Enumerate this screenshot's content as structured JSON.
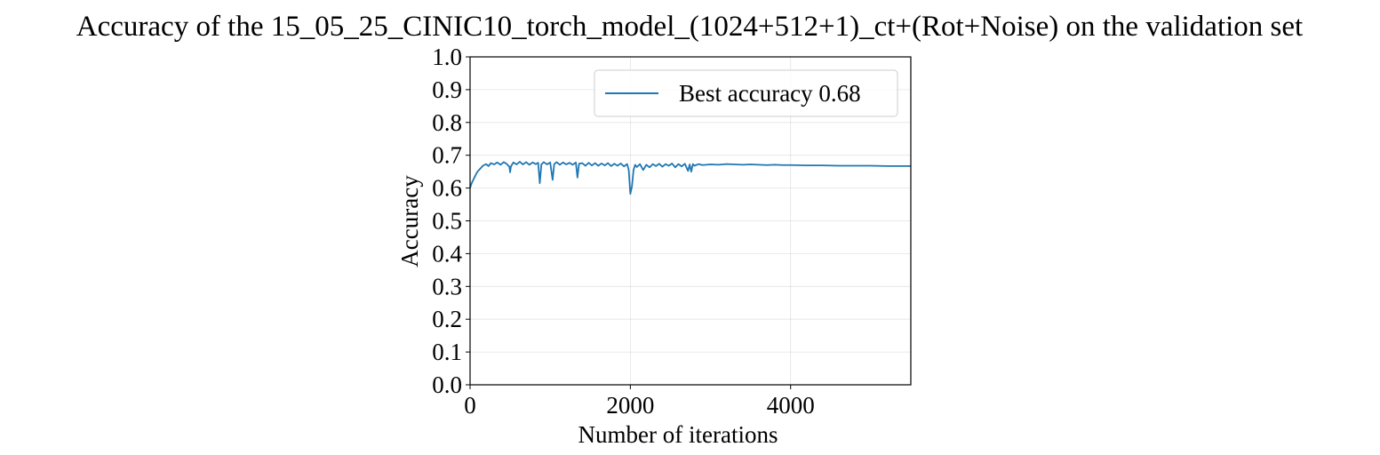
{
  "chart_data": {
    "type": "line",
    "title": "Accuracy of the 15_05_25_CINIC10_torch_model_(1024+512+1)_ct+(Rot+Noise) on the validation set",
    "xlabel": "Number of iterations",
    "ylabel": "Accuracy",
    "xlim": [
      0,
      5500
    ],
    "ylim": [
      0.0,
      1.0
    ],
    "xticks": [
      0,
      2000,
      4000
    ],
    "xtick_labels": [
      "0",
      "2000",
      "4000"
    ],
    "yticks": [
      0.0,
      0.1,
      0.2,
      0.3,
      0.4,
      0.5,
      0.6,
      0.7,
      0.8,
      0.9,
      1.0
    ],
    "ytick_labels": [
      "0.0",
      "0.1",
      "0.2",
      "0.3",
      "0.4",
      "0.5",
      "0.6",
      "0.7",
      "0.8",
      "0.9",
      "1.0"
    ],
    "grid": true,
    "legend_position": "top-right",
    "series": [
      {
        "name": "Best accuracy 0.68",
        "color": "#1f77b4",
        "x": [
          0,
          20,
          40,
          60,
          80,
          100,
          130,
          160,
          200,
          230,
          260,
          300,
          340,
          380,
          420,
          460,
          490,
          500,
          510,
          540,
          580,
          620,
          660,
          700,
          740,
          780,
          820,
          850,
          870,
          890,
          920,
          960,
          1000,
          1030,
          1050,
          1080,
          1120,
          1160,
          1200,
          1240,
          1280,
          1320,
          1340,
          1360,
          1400,
          1440,
          1480,
          1520,
          1560,
          1600,
          1640,
          1680,
          1720,
          1760,
          1800,
          1840,
          1880,
          1920,
          1960,
          1980,
          2000,
          2020,
          2040,
          2060,
          2080,
          2120,
          2160,
          2200,
          2240,
          2280,
          2320,
          2360,
          2400,
          2440,
          2480,
          2520,
          2560,
          2600,
          2640,
          2680,
          2720,
          2740,
          2760,
          2780,
          2800,
          2850,
          2900,
          3000,
          3100,
          3200,
          3300,
          3400,
          3500,
          3600,
          3700,
          3800,
          3900,
          4000,
          4200,
          4400,
          4600,
          4800,
          5000,
          5200,
          5500
        ],
        "values": [
          0.6,
          0.615,
          0.625,
          0.635,
          0.645,
          0.652,
          0.66,
          0.668,
          0.673,
          0.667,
          0.676,
          0.672,
          0.678,
          0.671,
          0.679,
          0.673,
          0.665,
          0.648,
          0.666,
          0.678,
          0.672,
          0.68,
          0.672,
          0.679,
          0.671,
          0.678,
          0.673,
          0.677,
          0.615,
          0.672,
          0.679,
          0.672,
          0.678,
          0.625,
          0.673,
          0.679,
          0.671,
          0.678,
          0.672,
          0.677,
          0.671,
          0.678,
          0.632,
          0.674,
          0.676,
          0.668,
          0.677,
          0.669,
          0.676,
          0.668,
          0.675,
          0.669,
          0.676,
          0.667,
          0.674,
          0.668,
          0.675,
          0.666,
          0.673,
          0.655,
          0.582,
          0.605,
          0.655,
          0.671,
          0.664,
          0.673,
          0.655,
          0.671,
          0.663,
          0.673,
          0.667,
          0.674,
          0.665,
          0.673,
          0.668,
          0.675,
          0.663,
          0.673,
          0.666,
          0.674,
          0.652,
          0.672,
          0.65,
          0.673,
          0.668,
          0.673,
          0.67,
          0.672,
          0.671,
          0.673,
          0.672,
          0.671,
          0.672,
          0.671,
          0.67,
          0.671,
          0.67,
          0.67,
          0.669,
          0.669,
          0.668,
          0.668,
          0.668,
          0.667,
          0.667
        ]
      }
    ]
  }
}
